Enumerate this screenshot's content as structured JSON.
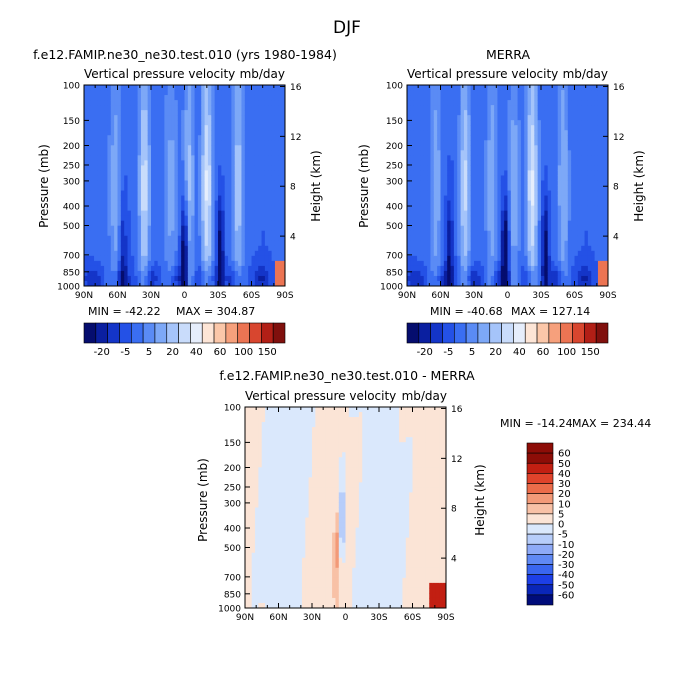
{
  "figure": {
    "title": "DJF"
  },
  "colors": {
    "abs": [
      "#050d6e",
      "#0a1fa0",
      "#1435c8",
      "#2451e6",
      "#3a6ef2",
      "#5a8bf5",
      "#7da8f7",
      "#a5c4fa",
      "#c9dcfb",
      "#e6eefc",
      "#fde5d6",
      "#fbc7a9",
      "#f6a07c",
      "#ec7453",
      "#d8462f",
      "#b21f16",
      "#80100d"
    ],
    "diff": [
      "#000c7a",
      "#0a26b8",
      "#1d3fe6",
      "#3a66ef",
      "#6089f4",
      "#8eaaf7",
      "#b7cdfa",
      "#dae8fc",
      "#fbe4d6",
      "#f8c1a6",
      "#f39a78",
      "#ec6c4a",
      "#e0432b",
      "#c21f12",
      "#8d0d07"
    ]
  },
  "chart_data": [
    {
      "id": "model",
      "type": "heatmap",
      "title": "f.e12.FAMIP.ne30_ne30.test.010 (yrs 1980-1984)",
      "subtitle": "Vertical pressure velocity",
      "units": "mb/day",
      "ylabel": "Pressure (mb)",
      "y2label": "Height (km)",
      "x_ticks": [
        "90N",
        "60N",
        "30N",
        "0",
        "30S",
        "60S",
        "90S"
      ],
      "y_ticks": [
        "100",
        "150",
        "200",
        "250",
        "300",
        "400",
        "500",
        "700",
        "850",
        "1000"
      ],
      "y2_ticks": [
        "16",
        "12",
        "8",
        "4"
      ],
      "stats": {
        "min": "MIN = -42.22",
        "max": "MAX = 304.87"
      },
      "colorbar_labels": [
        "-20",
        "-5",
        "5",
        "20",
        "40",
        "60",
        "100",
        "150"
      ],
      "ridges": [
        [
          -48,
          0.55
        ],
        [
          -20,
          0.85
        ],
        [
          -4,
          0.55
        ],
        [
          12,
          0.35
        ],
        [
          36,
          0.75
        ],
        [
          62,
          0.4
        ]
      ],
      "troughs": [
        [
          0,
          0.9
        ],
        [
          -32,
          0.7
        ],
        [
          55,
          0.4
        ]
      ]
    },
    {
      "id": "obs",
      "type": "heatmap",
      "title": "MERRA",
      "subtitle": "Vertical pressure velocity",
      "units": "mb/day",
      "ylabel": "Pressure (mb)",
      "y2label": "Height (km)",
      "x_ticks": [
        "90N",
        "60N",
        "30N",
        "0",
        "30S",
        "60S",
        "90S"
      ],
      "y_ticks": [
        "100",
        "150",
        "200",
        "250",
        "300",
        "400",
        "500",
        "700",
        "850",
        "1000"
      ],
      "y2_ticks": [
        "16",
        "12",
        "8",
        "4"
      ],
      "stats": {
        "min": "MIN = -40.68",
        "max": "MAX = 127.14"
      },
      "colorbar_labels": [
        "-20",
        "-5",
        "5",
        "20",
        "40",
        "60",
        "100",
        "150"
      ],
      "ridges": [
        [
          -50,
          0.45
        ],
        [
          -22,
          0.85
        ],
        [
          -6,
          0.45
        ],
        [
          14,
          0.4
        ],
        [
          38,
          0.7
        ],
        [
          64,
          0.4
        ]
      ],
      "troughs": [
        [
          2,
          0.85
        ],
        [
          -34,
          0.7
        ],
        [
          52,
          0.5
        ]
      ]
    },
    {
      "id": "diff",
      "type": "heatmap",
      "title": "f.e12.FAMIP.ne30_ne30.test.010 - MERRA",
      "subtitle": "Vertical pressure velocity",
      "units": "mb/day",
      "ylabel": "Pressure (mb)",
      "y2label": "Height (km)",
      "x_ticks": [
        "90N",
        "60N",
        "30N",
        "0",
        "30S",
        "60S",
        "90S"
      ],
      "y_ticks": [
        "100",
        "150",
        "200",
        "250",
        "300",
        "400",
        "500",
        "700",
        "850",
        "1000"
      ],
      "y2_ticks": [
        "16",
        "12",
        "8",
        "4"
      ],
      "stats": {
        "min": "MIN = -14.24",
        "max": "MAX = 234.44"
      },
      "colorbar_labels": [
        "60",
        "50",
        "40",
        "30",
        "20",
        "10",
        "5",
        "0",
        "-5",
        "-10",
        "-20",
        "-30",
        "-40",
        "-50",
        "-60"
      ]
    }
  ]
}
